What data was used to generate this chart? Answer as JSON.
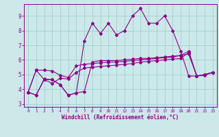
{
  "xlabel": "Windchill (Refroidissement éolien,°C)",
  "background_color": "#cce8e8",
  "line_color": "#880088",
  "grid_color": "#99cccc",
  "xlim": [
    -0.5,
    23.5
  ],
  "ylim": [
    2.8,
    9.8
  ],
  "xticks": [
    0,
    1,
    2,
    3,
    4,
    5,
    6,
    7,
    8,
    9,
    10,
    11,
    12,
    13,
    14,
    15,
    16,
    17,
    18,
    19,
    20,
    21,
    22,
    23
  ],
  "yticks": [
    3,
    4,
    5,
    6,
    7,
    8,
    9
  ],
  "series_wavy": [
    3.8,
    3.6,
    4.7,
    4.65,
    4.3,
    3.6,
    3.75,
    7.3,
    8.5,
    7.8,
    8.5,
    7.7,
    8.0,
    9.0,
    9.5,
    8.5,
    8.5,
    9.0,
    8.0,
    6.6,
    4.9,
    4.9,
    5.0,
    5.15
  ],
  "series_upper": [
    3.8,
    5.3,
    5.3,
    5.25,
    4.95,
    4.8,
    5.6,
    5.7,
    5.75,
    5.8,
    5.85,
    5.85,
    5.9,
    5.95,
    6.0,
    6.05,
    6.1,
    6.15,
    6.2,
    6.3,
    6.6,
    4.9,
    5.0,
    5.15
  ],
  "series_lower": [
    3.8,
    5.3,
    4.65,
    4.4,
    4.75,
    4.7,
    5.15,
    5.45,
    5.5,
    5.55,
    5.6,
    5.65,
    5.7,
    5.75,
    5.85,
    5.9,
    5.95,
    6.0,
    6.05,
    6.1,
    6.5,
    4.9,
    5.0,
    5.15
  ],
  "series_flat": [
    3.8,
    3.6,
    4.65,
    4.65,
    4.3,
    3.6,
    3.75,
    3.85,
    5.85,
    5.95,
    5.95,
    5.95,
    6.0,
    6.05,
    6.1,
    6.1,
    6.15,
    6.2,
    6.25,
    6.3,
    6.4,
    4.9,
    4.95,
    5.15
  ]
}
